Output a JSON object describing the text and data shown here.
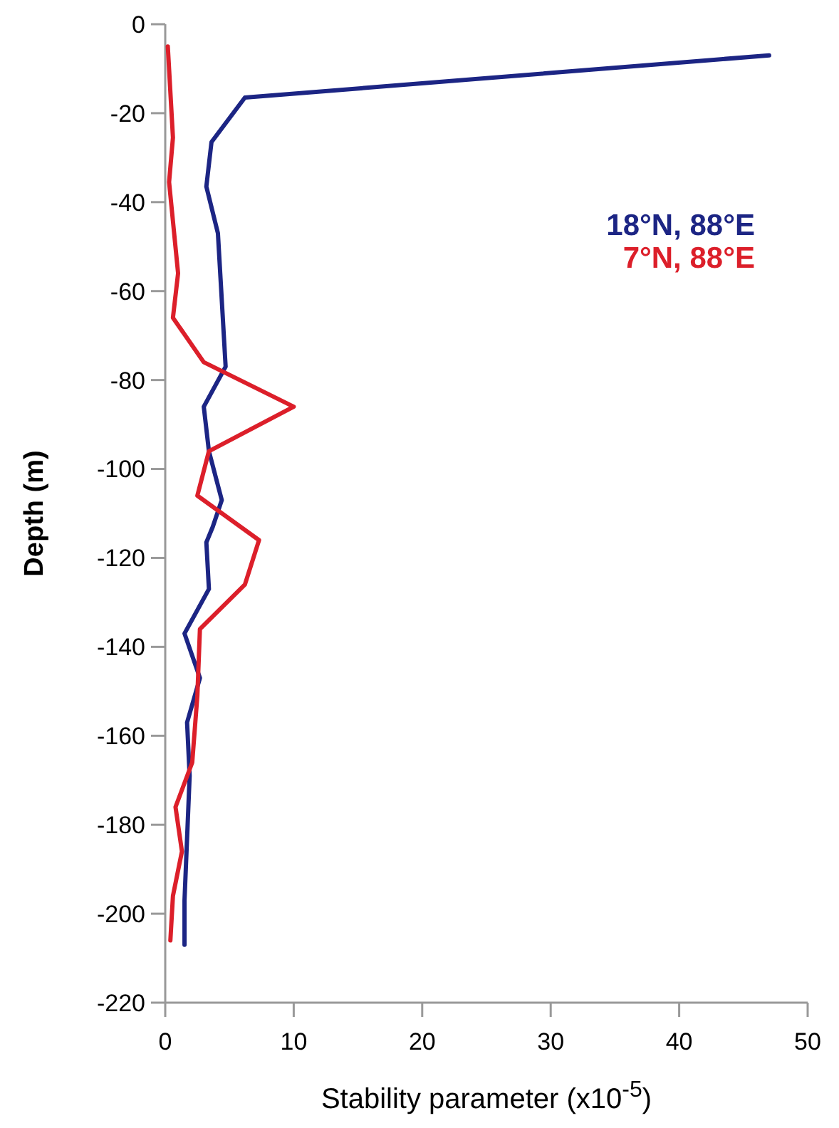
{
  "chart_data": {
    "type": "line",
    "xlabel": "Stability parameter (x10$^{-5}$)",
    "ylabel": "Depth (m)",
    "xlim": [
      0,
      50
    ],
    "xticks": [
      0,
      10,
      20,
      30,
      40,
      50
    ],
    "ylim": [
      -220,
      0
    ],
    "yticks": [
      0,
      -20,
      -40,
      -60,
      -80,
      -100,
      -120,
      -140,
      -160,
      -180,
      -200,
      -220
    ],
    "grid": false,
    "legend": "top right",
    "marker": "none",
    "line_style": "solid",
    "series": [
      {
        "name": "18°N, 88°E",
        "color": "#1c2584",
        "x": [
          47,
          6.2,
          3.6,
          3.2,
          4.1,
          4.3,
          4.7,
          3.0,
          3.4,
          4.4,
          3.7,
          3.2,
          3.4,
          1.5,
          2.7,
          1.7,
          1.9,
          1.5,
          1.5
        ],
        "values": [
          -7,
          -16.5,
          -26.5,
          -36.5,
          -47,
          -57,
          -77,
          -86,
          -96,
          -107,
          -113,
          -116.5,
          -127,
          -137,
          -147,
          -157,
          -169,
          -197,
          -207
        ]
      },
      {
        "name": "7°N, 88°E",
        "color": "#dc1f2a",
        "x": [
          0.2,
          0.6,
          0.3,
          1.0,
          0.6,
          3.0,
          10.0,
          3.4,
          2.5,
          7.3,
          6.2,
          2.7,
          2.5,
          2.1,
          0.8,
          1.3,
          0.6,
          0.4
        ],
        "values": [
          -5,
          -25.5,
          -35.5,
          -56,
          -66,
          -76,
          -86,
          -96,
          -106,
          -116,
          -126,
          -136,
          -151,
          -166,
          -176,
          -186,
          -196,
          -206
        ]
      }
    ]
  }
}
